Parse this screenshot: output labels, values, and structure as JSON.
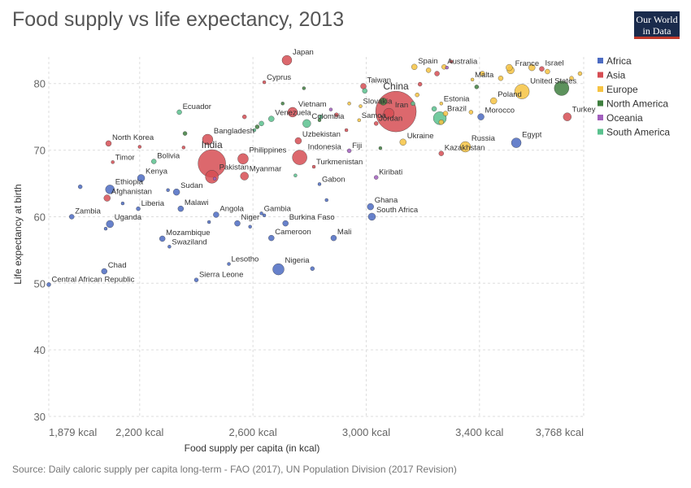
{
  "header": {
    "title": "Food supply vs life expectancy, 2013"
  },
  "logo": {
    "line1": "Our World",
    "line2": "in Data"
  },
  "footer": {
    "source": "Source: Daily caloric supply per capita long-term - FAO (2017), UN Population Division (2017 Revision)"
  },
  "chart_data": {
    "type": "scatter",
    "xlabel": "Food supply per capita (in kcal)",
    "ylabel": "Life expectancy at birth",
    "xlim": [
      1879,
      3768
    ],
    "ylim": [
      30,
      84
    ],
    "x_ticks": [
      1879,
      2200,
      2600,
      3000,
      3400,
      3768
    ],
    "x_tick_labels": [
      "1,879 kcal",
      "2,200 kcal",
      "2,600 kcal",
      "3,000 kcal",
      "3,400 kcal",
      "3,768 kcal"
    ],
    "y_ticks": [
      30,
      40,
      50,
      60,
      70,
      80
    ],
    "grid": true,
    "legend_position": "top-right",
    "series": [
      {
        "name": "Africa",
        "color": "#4c6bc2",
        "points": [
          {
            "label": "Central African Republic",
            "x": 1879,
            "y": 49.8,
            "r": 2.5
          },
          {
            "label": "Zambia",
            "x": 1960,
            "y": 60.0,
            "r": 3
          },
          {
            "label": "Chad",
            "x": 2075,
            "y": 51.8,
            "r": 3.5
          },
          {
            "label": "Uganda",
            "x": 2095,
            "y": 58.9,
            "r": 4.5
          },
          {
            "label": "Ethiopia",
            "x": 2095,
            "y": 64.1,
            "r": 5.5
          },
          {
            "label": "Kenya",
            "x": 2205,
            "y": 65.8,
            "r": 4.5
          },
          {
            "label": "Liberia",
            "x": 2195,
            "y": 61.2,
            "r": 2.5
          },
          {
            "label": "Mozambique",
            "x": 2280,
            "y": 56.7,
            "r": 3.5
          },
          {
            "label": "Swaziland",
            "x": 2305,
            "y": 55.5,
            "r": 2
          },
          {
            "label": "Sudan",
            "x": 2330,
            "y": 63.7,
            "r": 4
          },
          {
            "label": "Malawi",
            "x": 2345,
            "y": 61.2,
            "r": 3.5
          },
          {
            "label": "Sierra Leone",
            "x": 2400,
            "y": 50.5,
            "r": 2.5
          },
          {
            "label": "Angola",
            "x": 2470,
            "y": 60.3,
            "r": 3.5
          },
          {
            "label": "Niger",
            "x": 2545,
            "y": 59.0,
            "r": 3.5
          },
          {
            "label": "Lesotho",
            "x": 2515,
            "y": 52.9,
            "r": 2
          },
          {
            "label": "Gambia",
            "x": 2630,
            "y": 60.5,
            "r": 2
          },
          {
            "label": "Cameroon",
            "x": 2665,
            "y": 56.8,
            "r": 3.5
          },
          {
            "label": "Nigeria",
            "x": 2690,
            "y": 52.1,
            "r": 7
          },
          {
            "label": "Burkina Faso",
            "x": 2715,
            "y": 59.0,
            "r": 3.5
          },
          {
            "label": "Mali",
            "x": 2885,
            "y": 56.8,
            "r": 3.5
          },
          {
            "label": "Gabon",
            "x": 2835,
            "y": 64.9,
            "r": 2
          },
          {
            "label": "Ghana",
            "x": 3015,
            "y": 61.5,
            "r": 4
          },
          {
            "label": "South Africa",
            "x": 3020,
            "y": 60.0,
            "r": 4.5
          },
          {
            "label": "Morocco",
            "x": 3405,
            "y": 75.0,
            "r": 4
          },
          {
            "label": "Egypt",
            "x": 3530,
            "y": 71.1,
            "r": 6
          },
          {
            "label": "",
            "x": 1990,
            "y": 64.5,
            "r": 2.5
          },
          {
            "label": "",
            "x": 2140,
            "y": 62.0,
            "r": 2
          },
          {
            "label": "",
            "x": 2080,
            "y": 58.2,
            "r": 2
          },
          {
            "label": "",
            "x": 2300,
            "y": 64.0,
            "r": 2
          },
          {
            "label": "",
            "x": 2445,
            "y": 59.2,
            "r": 2
          },
          {
            "label": "",
            "x": 2590,
            "y": 58.5,
            "r": 2
          },
          {
            "label": "",
            "x": 2640,
            "y": 60.2,
            "r": 2
          },
          {
            "label": "",
            "x": 2860,
            "y": 62.5,
            "r": 2
          },
          {
            "label": "",
            "x": 2810,
            "y": 52.2,
            "r": 2.5
          }
        ]
      },
      {
        "name": "Asia",
        "color": "#d64d53",
        "points": [
          {
            "label": "Japan",
            "x": 2720,
            "y": 83.5,
            "r": 6
          },
          {
            "label": "Cyprus",
            "x": 2640,
            "y": 80.2,
            "r": 2
          },
          {
            "label": "North Korea",
            "x": 2090,
            "y": 71.0,
            "r": 3.5
          },
          {
            "label": "Timor",
            "x": 2105,
            "y": 68.2,
            "r": 2
          },
          {
            "label": "Afghanistan",
            "x": 2085,
            "y": 62.8,
            "r": 4
          },
          {
            "label": "Bangladesh",
            "x": 2440,
            "y": 71.6,
            "r": 6.5
          },
          {
            "label": "India",
            "x": 2455,
            "y": 68.0,
            "r": 17
          },
          {
            "label": "Pakistan",
            "x": 2455,
            "y": 66.0,
            "r": 8
          },
          {
            "label": "Myanmar",
            "x": 2570,
            "y": 66.1,
            "r": 5
          },
          {
            "label": "Philippines",
            "x": 2565,
            "y": 68.7,
            "r": 6.5
          },
          {
            "label": "Indonesia",
            "x": 2765,
            "y": 68.9,
            "r": 9
          },
          {
            "label": "Vietnam",
            "x": 2740,
            "y": 75.7,
            "r": 6
          },
          {
            "label": "Uzbekistan",
            "x": 2760,
            "y": 71.4,
            "r": 4
          },
          {
            "label": "Turkmenistan",
            "x": 2815,
            "y": 67.5,
            "r": 2
          },
          {
            "label": "Taiwan",
            "x": 2990,
            "y": 79.6,
            "r": 3.5
          },
          {
            "label": "China",
            "x": 3105,
            "y": 75.8,
            "r": 25
          },
          {
            "label": "Iran",
            "x": 3080,
            "y": 75.5,
            "r": 6.5
          },
          {
            "label": "Jordan",
            "x": 3035,
            "y": 74.0,
            "r": 2.5
          },
          {
            "label": "Kazakhstan",
            "x": 3265,
            "y": 69.5,
            "r": 3
          },
          {
            "label": "Israel",
            "x": 3620,
            "y": 82.2,
            "r": 3
          },
          {
            "label": "Turkey",
            "x": 3710,
            "y": 75.0,
            "r": 5
          },
          {
            "label": "",
            "x": 2570,
            "y": 75.0,
            "r": 2.5
          },
          {
            "label": "",
            "x": 2895,
            "y": 75.3,
            "r": 2.5
          },
          {
            "label": "",
            "x": 2930,
            "y": 73.0,
            "r": 2
          },
          {
            "label": "",
            "x": 3300,
            "y": 83.3,
            "r": 2
          },
          {
            "label": "",
            "x": 3250,
            "y": 81.5,
            "r": 3
          },
          {
            "label": "",
            "x": 3190,
            "y": 79.9,
            "r": 2.5
          },
          {
            "label": "",
            "x": 2355,
            "y": 70.4,
            "r": 2
          },
          {
            "label": "",
            "x": 2200,
            "y": 70.5,
            "r": 2
          }
        ]
      },
      {
        "name": "Europe",
        "color": "#f6c342",
        "points": [
          {
            "label": "Spain",
            "x": 3170,
            "y": 82.5,
            "r": 3.5
          },
          {
            "label": "Australia",
            "x": 3275,
            "y": 82.5,
            "r": 3
          },
          {
            "label": "Malta",
            "x": 3375,
            "y": 80.6,
            "r": 2
          },
          {
            "label": "France",
            "x": 3510,
            "y": 82.0,
            "r": 4.5
          },
          {
            "label": "United States",
            "x": 3550,
            "y": 78.8,
            "r": 9
          },
          {
            "label": "Slovakia",
            "x": 2980,
            "y": 76.6,
            "r": 2
          },
          {
            "label": "Samoa",
            "x": 2975,
            "y": 74.5,
            "r": 2
          },
          {
            "label": "Estonia",
            "x": 3265,
            "y": 77.0,
            "r": 2
          },
          {
            "label": "Poland",
            "x": 3450,
            "y": 77.4,
            "r": 4
          },
          {
            "label": "Russia",
            "x": 3350,
            "y": 70.5,
            "r": 6.5
          },
          {
            "label": "Ukraine",
            "x": 3130,
            "y": 71.2,
            "r": 4
          },
          {
            "label": "",
            "x": 3220,
            "y": 82.0,
            "r": 3
          },
          {
            "label": "",
            "x": 3410,
            "y": 81.5,
            "r": 3
          },
          {
            "label": "",
            "x": 3475,
            "y": 80.8,
            "r": 3
          },
          {
            "label": "",
            "x": 3505,
            "y": 82.4,
            "r": 4
          },
          {
            "label": "",
            "x": 3585,
            "y": 82.4,
            "r": 4
          },
          {
            "label": "",
            "x": 3640,
            "y": 81.8,
            "r": 3
          },
          {
            "label": "",
            "x": 3725,
            "y": 80.8,
            "r": 2.5
          },
          {
            "label": "",
            "x": 3755,
            "y": 81.5,
            "r": 2.5
          },
          {
            "label": "",
            "x": 3280,
            "y": 75.5,
            "r": 3
          },
          {
            "label": "",
            "x": 3265,
            "y": 74.2,
            "r": 3
          },
          {
            "label": "",
            "x": 3370,
            "y": 75.7,
            "r": 2.5
          },
          {
            "label": "",
            "x": 2940,
            "y": 77.0,
            "r": 2
          },
          {
            "label": "",
            "x": 3180,
            "y": 78.3,
            "r": 2.5
          }
        ]
      },
      {
        "name": "North America",
        "color": "#3f7f3f",
        "points": [
          {
            "label": "",
            "x": 3690,
            "y": 79.3,
            "r": 9
          },
          {
            "label": "",
            "x": 2780,
            "y": 79.3,
            "r": 2
          },
          {
            "label": "",
            "x": 2705,
            "y": 77.0,
            "r": 2
          },
          {
            "label": "",
            "x": 2835,
            "y": 74.5,
            "r": 2
          },
          {
            "label": "",
            "x": 2360,
            "y": 72.5,
            "r": 2.5
          },
          {
            "label": "",
            "x": 2615,
            "y": 73.5,
            "r": 2.5
          },
          {
            "label": "",
            "x": 3060,
            "y": 77.3,
            "r": 4.5
          },
          {
            "label": "",
            "x": 3050,
            "y": 70.3,
            "r": 2
          },
          {
            "label": "",
            "x": 3390,
            "y": 79.5,
            "r": 2.5
          }
        ]
      },
      {
        "name": "Oceania",
        "color": "#a25fbd",
        "points": [
          {
            "label": "Fiji",
            "x": 2940,
            "y": 69.9,
            "r": 2.5
          },
          {
            "label": "Kiribati",
            "x": 3035,
            "y": 65.9,
            "r": 2.5
          },
          {
            "label": "",
            "x": 2465,
            "y": 65.7,
            "r": 2
          },
          {
            "label": "",
            "x": 2875,
            "y": 76.1,
            "r": 2
          },
          {
            "label": "",
            "x": 3285,
            "y": 82.4,
            "r": 2
          }
        ]
      },
      {
        "name": "South America",
        "color": "#5ac18e",
        "points": [
          {
            "label": "Ecuador",
            "x": 2340,
            "y": 75.7,
            "r": 3
          },
          {
            "label": "Bolivia",
            "x": 2250,
            "y": 68.3,
            "r": 3
          },
          {
            "label": "Venezuela",
            "x": 2665,
            "y": 74.7,
            "r": 3.5
          },
          {
            "label": "Colombia",
            "x": 2790,
            "y": 74.0,
            "r": 5
          },
          {
            "label": "Brazil",
            "x": 3260,
            "y": 74.8,
            "r": 8
          },
          {
            "label": "",
            "x": 2630,
            "y": 74.0,
            "r": 3
          },
          {
            "label": "",
            "x": 2605,
            "y": 73.0,
            "r": 2
          },
          {
            "label": "",
            "x": 2840,
            "y": 75.0,
            "r": 2.5
          },
          {
            "label": "",
            "x": 2995,
            "y": 78.9,
            "r": 3
          },
          {
            "label": "",
            "x": 3165,
            "y": 77.0,
            "r": 2.5
          },
          {
            "label": "",
            "x": 3240,
            "y": 76.2,
            "r": 3
          },
          {
            "label": "",
            "x": 2750,
            "y": 66.2,
            "r": 2
          }
        ]
      }
    ]
  }
}
